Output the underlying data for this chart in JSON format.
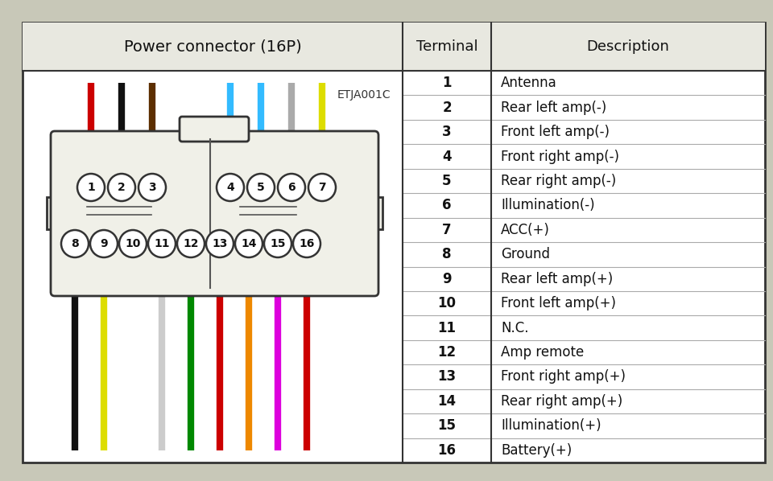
{
  "title": "Power connector (16P)",
  "code": "ETJA001C",
  "terminal_header": "Terminal",
  "description_header": "Description",
  "terminals": [
    1,
    2,
    3,
    4,
    5,
    6,
    7,
    8,
    9,
    10,
    11,
    12,
    13,
    14,
    15,
    16
  ],
  "descriptions": [
    "Antenna",
    "Rear left amp(-)",
    "Front left amp(-)",
    "Front right amp(-)",
    "Rear right amp(-)",
    "Illumination(-)",
    "ACC(+)",
    "Ground",
    "Rear left amp(+)",
    "Front left amp(+)",
    "N.C.",
    "Amp remote",
    "Front right amp(+)",
    "Rear right amp(+)",
    "Illumination(+)",
    "Battery(+)"
  ],
  "top_wire_colors": [
    "#cc0000",
    "#111111",
    "#5c2e00",
    "#33bbff",
    "#33bbff",
    "#aaaaaa",
    "#dddd00"
  ],
  "top_pin_labels": [
    "1",
    "2",
    "3",
    "4",
    "5",
    "6",
    "7"
  ],
  "bottom_wire_colors": [
    "#111111",
    "#dddd00",
    "#ffffff",
    "#cccccc",
    "#008800",
    "#cc0000",
    "#ee8800",
    "#dd00dd",
    "#cc0000"
  ],
  "bottom_pin_labels": [
    "8",
    "9",
    "10",
    "11",
    "12",
    "13",
    "14",
    "15",
    "16"
  ],
  "bg_color": "#c8c8b8",
  "table_bg": "#ffffff",
  "header_bg": "#e8e8e0",
  "border_color": "#333333",
  "connector_fill": "#f0f0e8",
  "connector_edge": "#333333"
}
